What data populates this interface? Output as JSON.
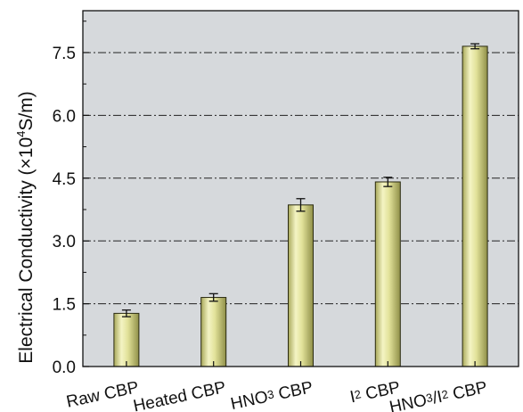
{
  "chart_data": {
    "type": "bar",
    "ylabel_main": "Electrical Conductivity (×10",
    "ylabel_exp": "4",
    "ylabel_unit": "S/m)",
    "categories": [
      {
        "label": "Raw CBP",
        "parts": [
          {
            "t": "Raw CBP",
            "sub": false
          }
        ]
      },
      {
        "label": "Heated CBP",
        "parts": [
          {
            "t": "Heated CBP",
            "sub": false
          }
        ]
      },
      {
        "label": "HNO3 CBP",
        "parts": [
          {
            "t": "HNO",
            "sub": false
          },
          {
            "t": "3",
            "sub": true
          },
          {
            "t": " CBP",
            "sub": false
          }
        ]
      },
      {
        "label": "I2 CBP",
        "parts": [
          {
            "t": "I",
            "sub": false
          },
          {
            "t": "2",
            "sub": true
          },
          {
            "t": " CBP",
            "sub": false
          }
        ]
      },
      {
        "label": "HNO3/I2 CBP",
        "parts": [
          {
            "t": "HNO",
            "sub": false
          },
          {
            "t": "3",
            "sub": true
          },
          {
            "t": "/I",
            "sub": false
          },
          {
            "t": "2",
            "sub": true
          },
          {
            "t": " CBP",
            "sub": false
          }
        ]
      }
    ],
    "values": [
      1.27,
      1.65,
      3.86,
      4.41,
      7.65
    ],
    "errors": [
      0.08,
      0.09,
      0.15,
      0.11,
      0.06
    ],
    "ylim": [
      0,
      8.5
    ],
    "yticks": [
      "0.0",
      "1.5",
      "3.0",
      "4.5",
      "6.0",
      "7.5"
    ],
    "grid": "horizontal dash-dot at major ticks",
    "colors": {
      "plot_background": "#d6d9dc",
      "bar_light": "#f4f4c4",
      "bar_mid": "#e2e29a",
      "bar_dark": "#a8a85a",
      "grid": "#222222"
    }
  }
}
